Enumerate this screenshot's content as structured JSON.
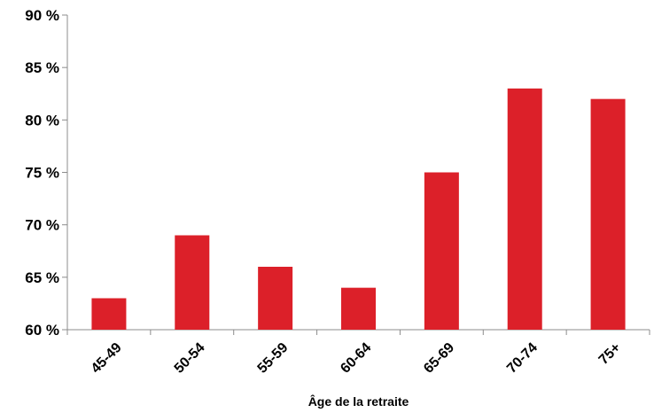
{
  "chart_data": {
    "type": "bar",
    "title": "",
    "xlabel": "Âge de la retraite",
    "ylabel": "",
    "categories": [
      "45-49",
      "50-54",
      "55-59",
      "60-64",
      "65-69",
      "70-74",
      "75+"
    ],
    "values": [
      63,
      69,
      66,
      64,
      75,
      83,
      82
    ],
    "ylim": [
      60,
      90
    ],
    "yticks": [
      60,
      65,
      70,
      75,
      80,
      85,
      90
    ],
    "ytick_labels": [
      "60 %",
      "65 %",
      "70 %",
      "75 %",
      "80 %",
      "85 %",
      "90 %"
    ],
    "grid": false,
    "legend": "none",
    "bar_color": "#dc2029",
    "axis_color": "#8c8c8c"
  }
}
